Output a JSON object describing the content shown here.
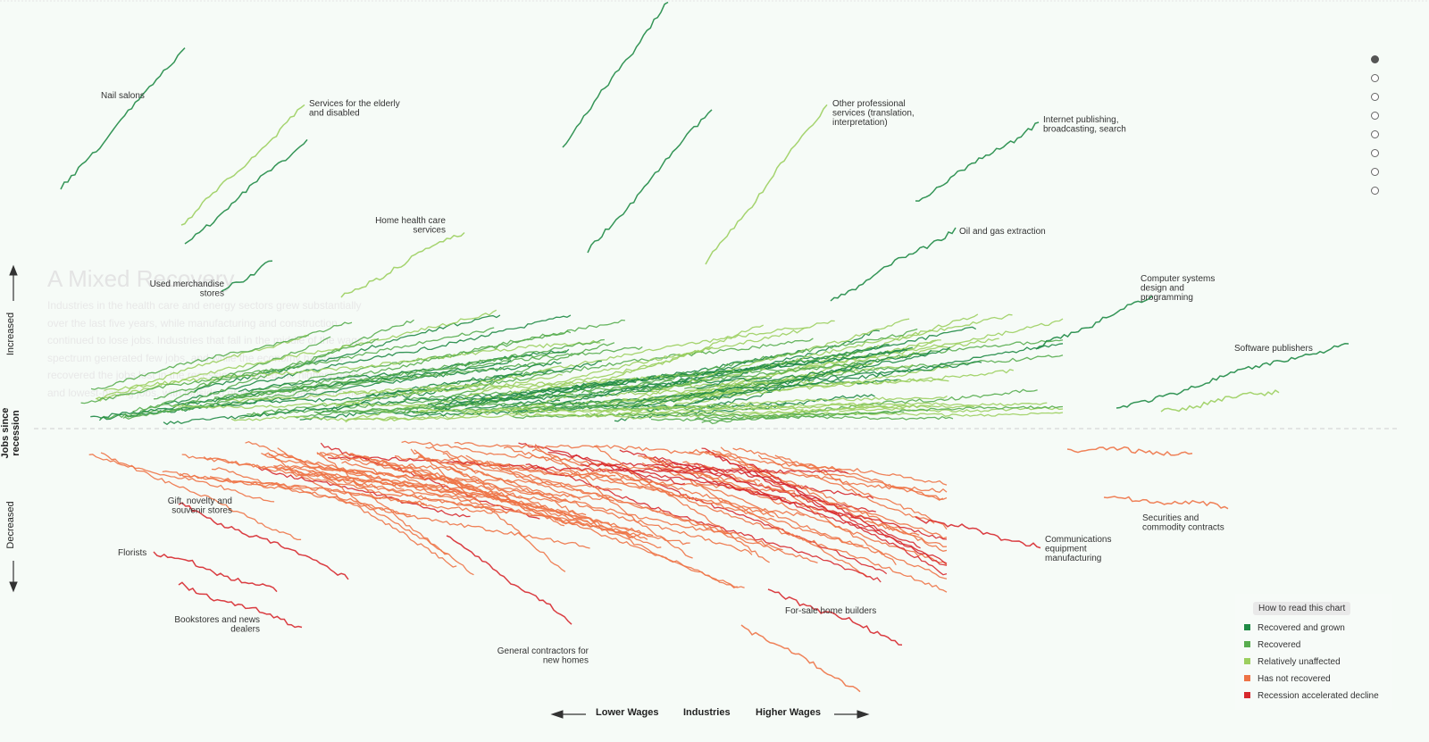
{
  "intro": {
    "title": "A Mixed Recovery",
    "body": "Industries in the health care and energy sectors grew substantially over the last five years, while manufacturing and construction continued to lose jobs. Industries that fall in the middle of the wage spectrum generated few jobs, and while the economy has now recovered the jobs lost in the recession, it added the highest-paying and lowest-paying jobs, with lopsided growth at the wage extremes."
  },
  "y_axis": {
    "title": "Jobs since recession",
    "up": "Increased",
    "down": "Decreased"
  },
  "x_axis": {
    "left": "Lower Wages",
    "center": "Industries",
    "right": "Higher Wages"
  },
  "nav": {
    "count": 8,
    "active": 0
  },
  "legend": {
    "button": "How to read this chart",
    "items": [
      {
        "label": "Recovered and grown",
        "color": "#1f8a45"
      },
      {
        "label": "Recovered",
        "color": "#58ad4f"
      },
      {
        "label": "Relatively unaffected",
        "color": "#9ccf5f"
      },
      {
        "label": "Has not recovered",
        "color": "#ee7346"
      },
      {
        "label": "Recession accelerated decline",
        "color": "#d7282d"
      }
    ]
  },
  "chart_data": {
    "type": "line",
    "x_axis": "Industries ordered by wage (lower to higher)",
    "y_axis": "Jobs since recession",
    "labeled_series": [
      {
        "name": "Nail salons",
        "category": "Recovered and grown"
      },
      {
        "name": "Services for the elderly and disabled",
        "category": "Relatively unaffected"
      },
      {
        "name": "Home health care services",
        "category": "Relatively unaffected"
      },
      {
        "name": "Used merchandise stores",
        "category": "Recovered and grown"
      },
      {
        "name": "Other professional services (translation, interpretation)",
        "category": "Relatively unaffected"
      },
      {
        "name": "Internet publishing, broadcasting, search",
        "category": "Recovered and grown"
      },
      {
        "name": "Oil and gas extraction",
        "category": "Recovered and grown"
      },
      {
        "name": "Computer systems design and programming",
        "category": "Recovered and grown"
      },
      {
        "name": "Software publishers",
        "category": "Recovered and grown"
      },
      {
        "name": "Gift, novelty and souvenir stores",
        "category": "Recession accelerated decline"
      },
      {
        "name": "Florists",
        "category": "Recession accelerated decline"
      },
      {
        "name": "Bookstores and news dealers",
        "category": "Recession accelerated decline"
      },
      {
        "name": "General contractors for new homes",
        "category": "Has not recovered"
      },
      {
        "name": "For-sale home builders",
        "category": "Has not recovered"
      },
      {
        "name": "Communications equipment manufacturing",
        "category": "Recession accelerated decline"
      },
      {
        "name": "Securities and commodity contracts",
        "category": "Has not recovered"
      }
    ]
  },
  "labels": {
    "nail": "Nail salons",
    "elderly": [
      "Services for the elderly",
      "and disabled"
    ],
    "homehealth": [
      "Home health care",
      "services"
    ],
    "usedmerch": [
      "Used merchandise",
      "stores"
    ],
    "otherprof": [
      "Other professional",
      "services (translation,",
      "interpretation)"
    ],
    "internet": [
      "Internet publishing,",
      "broadcasting, search"
    ],
    "oilgas": "Oil and gas extraction",
    "compsys": [
      "Computer systems",
      "design and",
      "programming"
    ],
    "software": "Software publishers",
    "gift": [
      "Gift, novelty and",
      "souvenir stores"
    ],
    "florists": "Florists",
    "bookstores": [
      "Bookstores and news",
      "dealers"
    ],
    "gencontract": [
      "General contractors for",
      "new homes"
    ],
    "forsale": "For-sale home builders",
    "comms": [
      "Communications",
      "equipment",
      "manufacturing"
    ],
    "securities": [
      "Securities and",
      "commodity contracts"
    ]
  }
}
